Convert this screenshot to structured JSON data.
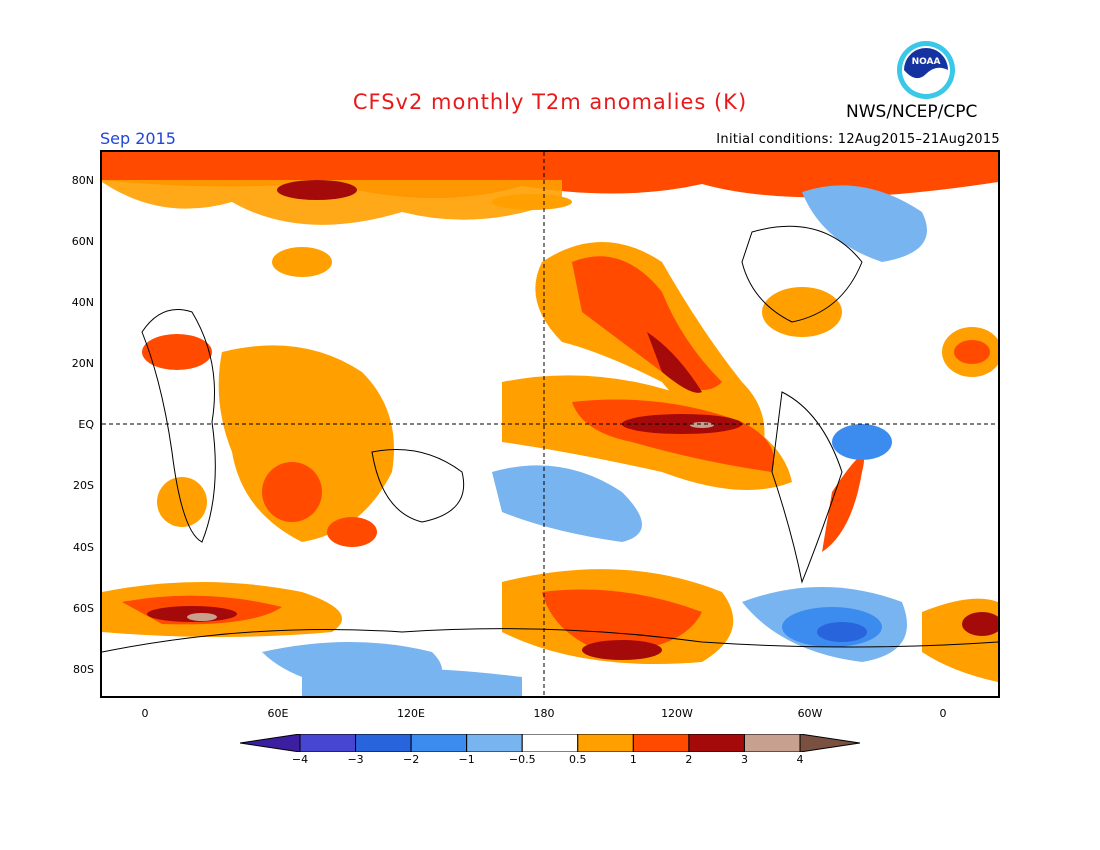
{
  "title": "CFSv2 monthly T2m anomalies (K)",
  "agency": "NWS/NCEP/CPC",
  "logo_text": "NOAA",
  "month": "Sep 2015",
  "initial_conditions": "Initial conditions: 12Aug2015–21Aug2015",
  "lat_labels": [
    "80N",
    "60N",
    "40N",
    "20N",
    "EQ",
    "20S",
    "40S",
    "60S",
    "80S"
  ],
  "lon_labels": [
    "0",
    "60E",
    "120E",
    "180",
    "120W",
    "60W",
    "0"
  ],
  "colorbar": {
    "labels": [
      "−4",
      "−3",
      "−2",
      "−1",
      "−0.5",
      "0.5",
      "1",
      "2",
      "3",
      "4"
    ],
    "colors": [
      "#3c1ea0",
      "#4646d2",
      "#2864dc",
      "#3c8cf0",
      "#78b4f0",
      "#ffffff",
      "#ffa000",
      "#ff4a00",
      "#a50a0a",
      "#c8a090",
      "#7a5040"
    ]
  }
}
